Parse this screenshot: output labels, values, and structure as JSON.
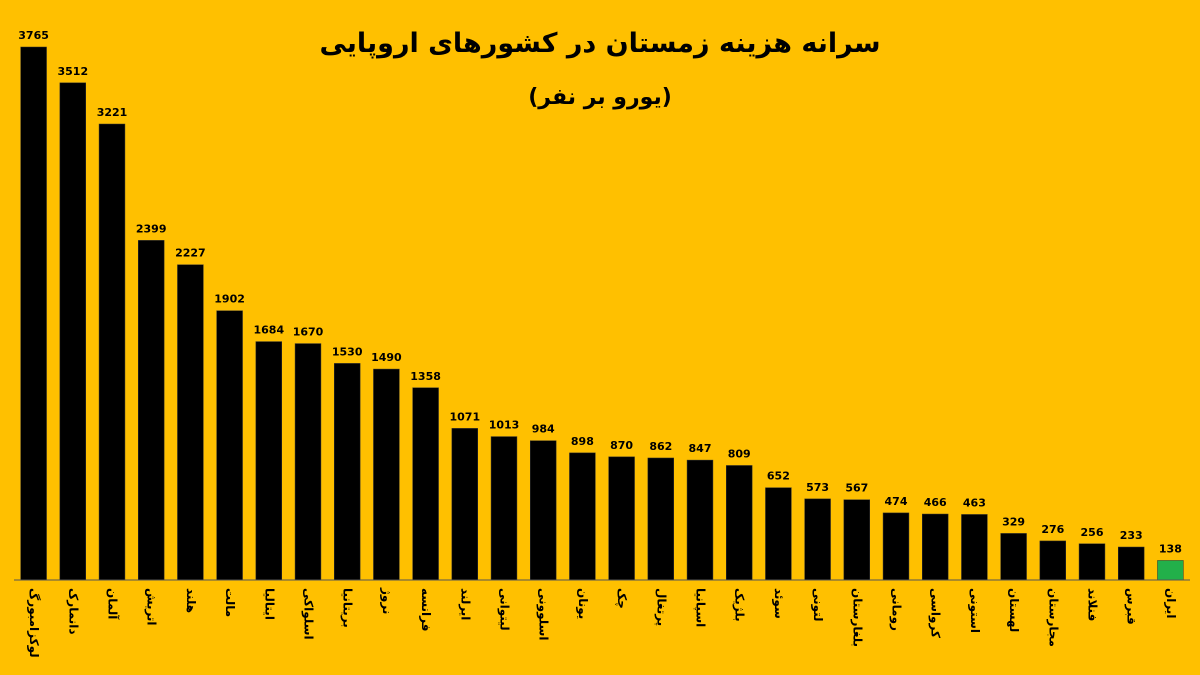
{
  "chart_data": {
    "type": "bar",
    "title": "سرانه هزینه زمستان در کشورهای اروپایی",
    "subtitle": "(یورو بر نفر)",
    "categories": [
      "لوکزامبورگ",
      "دانمارک",
      "آلمان",
      "اتریش",
      "هلند",
      "مالت",
      "ایتالیا",
      "اسلواکی",
      "بریتانیا",
      "نروژ",
      "فرانسه",
      "ایرلند",
      "لیتوانی",
      "اسلوونی",
      "یونان",
      "چک",
      "پرتغال",
      "اسپانیا",
      "بلژیک",
      "سوئد",
      "لتونی",
      "بلغارستان",
      "رومانی",
      "کرواسی",
      "استونی",
      "لهستان",
      "مجارستان",
      "فنلاند",
      "قبرس",
      "ایران"
    ],
    "values": [
      3765,
      3512,
      3221,
      2399,
      2227,
      1902,
      1684,
      1670,
      1530,
      1490,
      1358,
      1071,
      1013,
      984,
      898,
      870,
      862,
      847,
      809,
      652,
      573,
      567,
      474,
      466,
      463,
      329,
      276,
      256,
      233,
      138
    ],
    "colors": [
      "#000000",
      "#000000",
      "#000000",
      "#000000",
      "#000000",
      "#000000",
      "#000000",
      "#000000",
      "#000000",
      "#000000",
      "#000000",
      "#000000",
      "#000000",
      "#000000",
      "#000000",
      "#000000",
      "#000000",
      "#000000",
      "#000000",
      "#000000",
      "#000000",
      "#000000",
      "#000000",
      "#000000",
      "#000000",
      "#000000",
      "#000000",
      "#000000",
      "#000000",
      "#22b04a"
    ],
    "ylim": [
      0,
      3765
    ]
  }
}
